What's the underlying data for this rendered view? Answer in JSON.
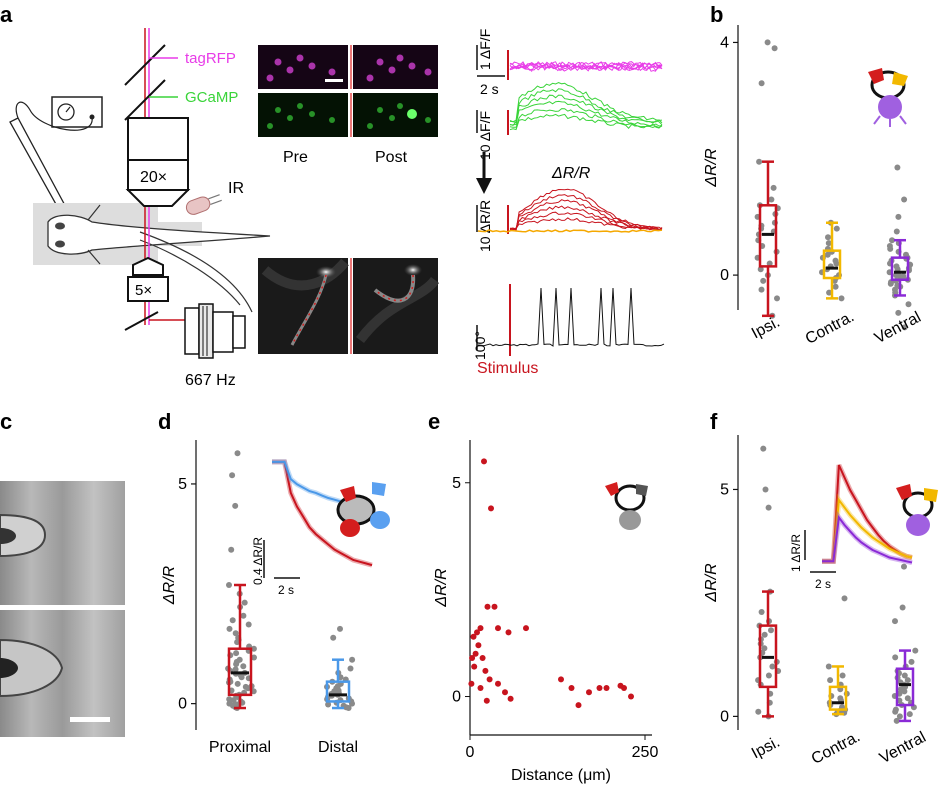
{
  "panels": {
    "a": {
      "letter": "a",
      "objective_20x": "20×",
      "objective_5x": "5×",
      "camera_rate": "667 Hz",
      "ir_label": "IR",
      "tagrfp_label": "tagRFP",
      "gcamp_label": "GCaMP",
      "pre_label": "Pre",
      "post_label": "Post",
      "scale_dff": "1 ΔF/F",
      "scale_time": "2 s",
      "scale_dff10": "10 ΔF/F",
      "ratio_title": "ΔR/R",
      "scale_drr10": "10 ΔR/R",
      "tail_scale": "100°",
      "stimulus_label": "Stimulus",
      "colors": {
        "magenta": "#e83ce8",
        "green": "#3ad43a",
        "red": "#c8141e",
        "orange": "#f5a800"
      }
    },
    "b": {
      "letter": "b"
    },
    "c": {
      "letter": "c"
    },
    "d": {
      "letter": "d",
      "inset_scale_y": "0.4 ΔR/R",
      "inset_scale_x": "2 s"
    },
    "e": {
      "letter": "e"
    },
    "f": {
      "letter": "f",
      "inset_scale_y": "1 ΔR/R",
      "inset_scale_x": "2 s"
    }
  },
  "chart_data": [
    {
      "id": "b",
      "type": "box",
      "ylabel": "ΔR/R",
      "yticks": [
        0,
        4
      ],
      "ylim": [
        -0.6,
        4.3
      ],
      "categories": [
        "Ipsi.",
        "Contra.",
        "Ventral"
      ],
      "colors": [
        "#c8141e",
        "#f2b800",
        "#8a2ad6"
      ],
      "boxes": [
        {
          "whisker_low": -0.7,
          "q1": 0.15,
          "median": 0.7,
          "q3": 1.2,
          "whisker_high": 1.95
        },
        {
          "whisker_low": -0.4,
          "q1": -0.05,
          "median": 0.12,
          "q3": 0.42,
          "whisker_high": 0.9
        },
        {
          "whisker_low": -0.35,
          "q1": -0.08,
          "median": 0.05,
          "q3": 0.3,
          "whisker_high": 0.6
        }
      ],
      "points": [
        [
          4.0,
          3.9,
          3.3,
          1.95,
          1.5,
          1.3,
          1.2,
          1.15,
          1.05,
          1.0,
          0.9,
          0.85,
          0.8,
          0.75,
          0.7,
          0.6,
          0.5,
          0.4,
          0.3,
          0.2,
          0.1,
          0.0,
          -0.1,
          -0.25,
          -0.4,
          -0.7
        ],
        [
          0.9,
          0.8,
          0.65,
          0.55,
          0.45,
          0.4,
          0.35,
          0.3,
          0.25,
          0.2,
          0.15,
          0.1,
          0.05,
          0.0,
          -0.05,
          -0.1,
          -0.2,
          -0.3,
          -0.4
        ],
        [
          1.85,
          1.3,
          1.0,
          0.75,
          0.6,
          0.55,
          0.5,
          0.45,
          0.4,
          0.35,
          0.3,
          0.28,
          0.25,
          0.2,
          0.18,
          0.15,
          0.12,
          0.1,
          0.08,
          0.05,
          0.02,
          0.0,
          -0.02,
          -0.05,
          -0.08,
          -0.1,
          -0.12,
          -0.15,
          -0.18,
          -0.2,
          -0.25,
          -0.3,
          -0.35,
          -0.5,
          -0.65,
          -0.9
        ]
      ]
    },
    {
      "id": "d",
      "type": "box",
      "ylabel": "ΔR/R",
      "yticks": [
        0,
        5
      ],
      "ylim": [
        -0.6,
        6.0
      ],
      "categories": [
        "Proximal",
        "Distal"
      ],
      "colors": [
        "#c8141e",
        "#4a98e8"
      ],
      "boxes": [
        {
          "whisker_low": -0.1,
          "q1": 0.2,
          "median": 0.7,
          "q3": 1.25,
          "whisker_high": 2.7
        },
        {
          "whisker_low": -0.1,
          "q1": 0.05,
          "median": 0.2,
          "q3": 0.5,
          "whisker_high": 1.0
        }
      ],
      "points": [
        [
          5.7,
          5.2,
          4.5,
          3.5,
          2.7,
          2.5,
          2.3,
          2.2,
          2.0,
          1.9,
          1.8,
          1.7,
          1.6,
          1.5,
          1.45,
          1.4,
          1.3,
          1.25,
          1.2,
          1.15,
          1.1,
          1.05,
          1.0,
          0.95,
          0.9,
          0.85,
          0.8,
          0.78,
          0.75,
          0.7,
          0.68,
          0.65,
          0.6,
          0.58,
          0.55,
          0.5,
          0.48,
          0.45,
          0.4,
          0.38,
          0.35,
          0.3,
          0.28,
          0.25,
          0.2,
          0.18,
          0.15,
          0.1,
          0.08,
          0.05,
          0.02,
          0.0,
          -0.02,
          -0.05,
          -0.08,
          -0.1
        ],
        [
          1.7,
          1.5,
          1.0,
          0.8,
          0.7,
          0.6,
          0.55,
          0.5,
          0.45,
          0.4,
          0.38,
          0.35,
          0.3,
          0.28,
          0.25,
          0.22,
          0.2,
          0.18,
          0.15,
          0.12,
          0.1,
          0.08,
          0.05,
          0.02,
          0.0,
          -0.02,
          -0.05,
          -0.08,
          -0.1
        ]
      ],
      "inset_series": [
        {
          "values": [
            3.2,
            3.2,
            3.2,
            2.3,
            1.9,
            1.6,
            1.3,
            1.1,
            0.95,
            0.8,
            0.65,
            0.55,
            0.45,
            0.35,
            0.3,
            0.25,
            0.2
          ]
        },
        {
          "values": [
            3.2,
            3.2,
            3.2,
            2.7,
            2.55,
            2.45,
            2.35,
            2.3,
            2.22,
            2.15,
            2.1,
            2.05,
            2.0,
            1.95,
            1.9,
            1.88,
            1.85
          ]
        }
      ]
    },
    {
      "id": "e",
      "type": "scatter",
      "xlabel": "Distance (μm)",
      "ylabel": "ΔR/R",
      "xticks": [
        0,
        250
      ],
      "yticks": [
        0,
        5
      ],
      "xlim": [
        0,
        260
      ],
      "ylim": [
        -0.9,
        6.0
      ],
      "color": "#c8141e",
      "points": [
        [
          20,
          5.5
        ],
        [
          30,
          4.4
        ],
        [
          25,
          2.1
        ],
        [
          35,
          2.1
        ],
        [
          15,
          1.6
        ],
        [
          10,
          1.5
        ],
        [
          40,
          1.6
        ],
        [
          55,
          1.5
        ],
        [
          80,
          1.6
        ],
        [
          5,
          1.4
        ],
        [
          12,
          1.2
        ],
        [
          18,
          0.9
        ],
        [
          22,
          0.6
        ],
        [
          28,
          0.4
        ],
        [
          8,
          1.0
        ],
        [
          6,
          0.7
        ],
        [
          15,
          0.2
        ],
        [
          24,
          -0.1
        ],
        [
          40,
          0.3
        ],
        [
          50,
          0.1
        ],
        [
          58,
          -0.05
        ],
        [
          130,
          0.4
        ],
        [
          145,
          0.2
        ],
        [
          155,
          -0.2
        ],
        [
          170,
          0.1
        ],
        [
          185,
          0.2
        ],
        [
          195,
          0.2
        ],
        [
          215,
          0.25
        ],
        [
          220,
          0.2
        ],
        [
          230,
          0.0
        ],
        [
          3,
          0.9
        ],
        [
          2,
          0.3
        ]
      ]
    },
    {
      "id": "f",
      "type": "box",
      "ylabel": "ΔR/R",
      "yticks": [
        0,
        5
      ],
      "ylim": [
        -0.3,
        6.2
      ],
      "categories": [
        "Ipsi.",
        "Contra.",
        "Ventral"
      ],
      "colors": [
        "#c8141e",
        "#f2b800",
        "#8a2ad6"
      ],
      "boxes": [
        {
          "whisker_low": 0.0,
          "q1": 0.65,
          "median": 1.3,
          "q3": 2.0,
          "whisker_high": 2.75
        },
        {
          "whisker_low": 0.05,
          "q1": 0.15,
          "median": 0.3,
          "q3": 0.65,
          "whisker_high": 1.1
        },
        {
          "whisker_low": -0.1,
          "q1": 0.25,
          "median": 0.7,
          "q3": 1.05,
          "whisker_high": 1.45
        }
      ],
      "points": [
        [
          5.9,
          5.0,
          4.6,
          2.75,
          2.3,
          2.1,
          2.0,
          1.9,
          1.8,
          1.7,
          1.6,
          1.5,
          1.4,
          1.3,
          1.2,
          1.1,
          1.0,
          0.9,
          0.8,
          0.7,
          0.5,
          0.3,
          0.1,
          0.0
        ],
        [
          2.6,
          1.1,
          0.9,
          0.8,
          0.7,
          0.6,
          0.5,
          0.45,
          0.4,
          0.35,
          0.3,
          0.25,
          0.2,
          0.15,
          0.12,
          0.1,
          0.08,
          0.05
        ],
        [
          3.3,
          2.4,
          2.1,
          1.45,
          1.3,
          1.2,
          1.1,
          1.0,
          0.95,
          0.9,
          0.85,
          0.8,
          0.75,
          0.7,
          0.65,
          0.6,
          0.55,
          0.5,
          0.45,
          0.4,
          0.35,
          0.3,
          0.25,
          0.2,
          0.15,
          0.1,
          0.05,
          0.0,
          -0.1
        ]
      ],
      "inset_series": [
        {
          "values": [
            0.15,
            0.15,
            0.15,
            4.0,
            3.5,
            3.0,
            2.6,
            2.2,
            1.8,
            1.5,
            1.2,
            0.95,
            0.75,
            0.6,
            0.45,
            0.35,
            0.3
          ]
        },
        {
          "values": [
            0.15,
            0.15,
            0.15,
            2.6,
            2.3,
            2.0,
            1.75,
            1.5,
            1.3,
            1.1,
            0.95,
            0.8,
            0.65,
            0.55,
            0.45,
            0.35,
            0.3
          ]
        },
        {
          "values": [
            0.15,
            0.15,
            0.15,
            1.9,
            1.6,
            1.35,
            1.1,
            0.9,
            0.75,
            0.6,
            0.5,
            0.4,
            0.3,
            0.25,
            0.2,
            0.15,
            0.1
          ]
        }
      ]
    }
  ]
}
